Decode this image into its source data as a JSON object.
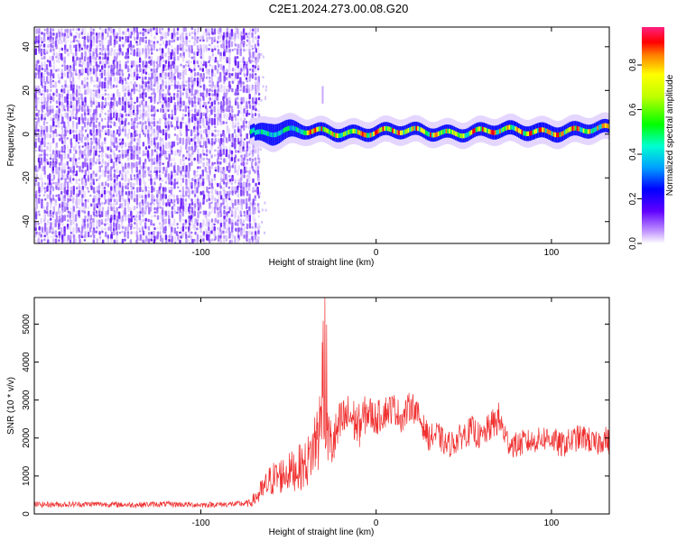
{
  "title": "C2E1.2024.273.00.08.G20",
  "chart_data": [
    {
      "type": "heatmap",
      "xlabel": "Height of straight line (km)",
      "ylabel": "Frequency (Hz)",
      "xlim": [
        -195,
        133
      ],
      "ylim": [
        -50,
        49
      ],
      "x_ticks": [
        -100,
        0,
        100
      ],
      "y_ticks": [
        -40,
        -20,
        0,
        20,
        40
      ],
      "colorbar": {
        "label": "Normalized spectral amplitude",
        "range": [
          0,
          0.97
        ],
        "ticks": [
          0.0,
          0.2,
          0.4,
          0.6,
          0.8
        ]
      },
      "noise_region_x": [
        -195,
        -68
      ],
      "signal_region_x": [
        -72,
        133
      ],
      "signal_center_hz": 1,
      "signal_band": [
        {
          "x": -70,
          "low": -3,
          "high": 4
        },
        {
          "x": -60,
          "low": -4,
          "high": 6
        },
        {
          "x": -50,
          "low": -3,
          "high": 5
        },
        {
          "x": -40,
          "low": -2,
          "high": 4
        },
        {
          "x": -30,
          "low": -2,
          "high": 4
        },
        {
          "x": 0,
          "low": -2,
          "high": 4
        },
        {
          "x": 50,
          "low": -2,
          "high": 4
        },
        {
          "x": 100,
          "low": -2,
          "high": 5
        },
        {
          "x": 133,
          "low": -1,
          "high": 5
        }
      ]
    },
    {
      "type": "line",
      "xlabel": "Height of straight line (km)",
      "ylabel": "SNR (10 * v/v)",
      "xlim": [
        -195,
        133
      ],
      "ylim": [
        0,
        5700
      ],
      "x_ticks": [
        -100,
        0,
        100
      ],
      "y_ticks": [
        0,
        1000,
        2000,
        3000,
        4000,
        5000
      ],
      "line_color": "#f03030",
      "series": [
        {
          "x": [
            -195,
            -180,
            -160,
            -140,
            -120,
            -100,
            -90,
            -80,
            -72,
            -65,
            -60,
            -55,
            -50,
            -45,
            -40,
            -36,
            -33,
            -30,
            -28,
            -25,
            -20,
            -15,
            -10,
            -5,
            0,
            5,
            10,
            15,
            20,
            25,
            30,
            35,
            40,
            45,
            50,
            55,
            60,
            65,
            70,
            75,
            80,
            85,
            90,
            95,
            100,
            105,
            110,
            115,
            120,
            125,
            130,
            133
          ],
          "y": [
            250,
            250,
            260,
            240,
            260,
            240,
            250,
            260,
            280,
            600,
            900,
            1000,
            1100,
            1200,
            1300,
            1700,
            2200,
            2500,
            2100,
            1800,
            2400,
            2600,
            2300,
            2700,
            2500,
            2700,
            2800,
            2500,
            2900,
            2500,
            2000,
            2100,
            1800,
            1900,
            2100,
            2200,
            2000,
            2300,
            2500,
            1900,
            1800,
            1900,
            1900,
            2000,
            2000,
            1800,
            1900,
            2000,
            2000,
            1800,
            2000,
            1900
          ],
          "spread": [
            150,
            150,
            150,
            150,
            150,
            150,
            150,
            150,
            200,
            700,
            900,
            1000,
            1000,
            1200,
            1300,
            1500,
            2500,
            1500,
            1500,
            1400,
            1300,
            1200,
            1200,
            1000,
            900,
            900,
            800,
            800,
            800,
            700,
            700,
            700,
            700,
            700,
            700,
            800,
            700,
            800,
            900,
            700,
            700,
            700,
            600,
            700,
            700,
            700,
            700,
            700,
            700,
            700,
            700,
            700
          ]
        }
      ]
    }
  ]
}
